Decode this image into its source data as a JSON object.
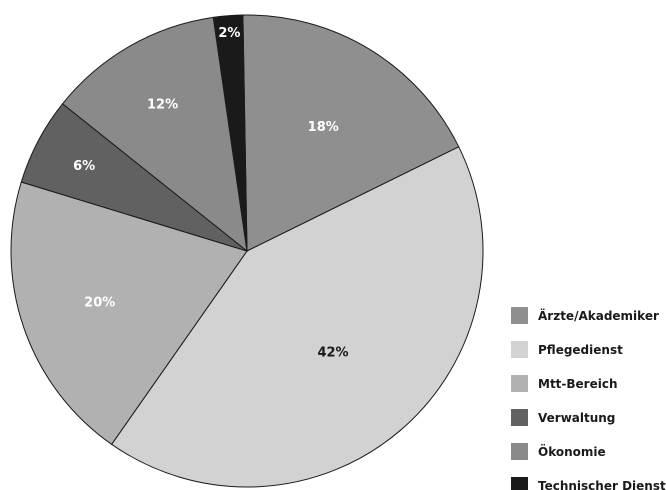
{
  "chart_data": {
    "type": "pie",
    "title": "",
    "legend_placement": "bottom-right",
    "slices": [
      {
        "name": "Ärzte/Akademiker",
        "value": 18,
        "label": "18%",
        "color": "#8f8f8f",
        "label_color": "#ffffff"
      },
      {
        "name": "Pflegedienst",
        "value": 42,
        "label": "42%",
        "color": "#d2d2d2",
        "label_color": "#1a1a1a"
      },
      {
        "name": "Mtt-Bereich",
        "value": 20,
        "label": "20%",
        "color": "#b1b1b1",
        "label_color": "#ffffff"
      },
      {
        "name": "Verwaltung",
        "value": 6,
        "label": "6%",
        "color": "#616161",
        "label_color": "#ffffff"
      },
      {
        "name": "Ökonomie",
        "value": 12,
        "label": "12%",
        "color": "#8a8a8a",
        "label_color": "#ffffff"
      },
      {
        "name": "Technischer Dienst",
        "value": 2,
        "label": "2%",
        "color": "#1a1a1a",
        "label_color": "#ffffff"
      }
    ]
  }
}
